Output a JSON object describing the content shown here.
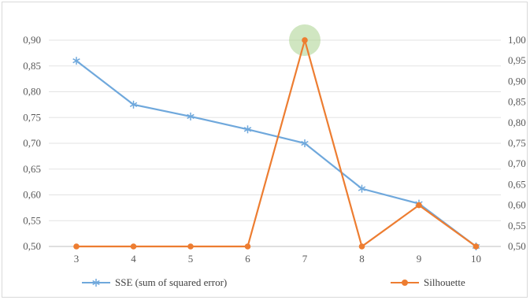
{
  "chart_data": {
    "type": "line",
    "categories": [
      "3",
      "4",
      "5",
      "6",
      "7",
      "8",
      "9",
      "10"
    ],
    "series": [
      {
        "name": "SSE (sum of squared error)",
        "axis": "left",
        "marker": "asterisk",
        "color": "#6fa8dc",
        "values": [
          0.86,
          0.775,
          0.752,
          0.727,
          0.7,
          0.612,
          0.583,
          0.5
        ]
      },
      {
        "name": "Silhouette",
        "axis": "right",
        "marker": "circle",
        "color": "#ed7d31",
        "values": [
          0.5,
          0.5,
          0.5,
          0.5,
          1.0,
          0.5,
          0.6,
          0.5
        ]
      }
    ],
    "y_left": {
      "ylim": [
        0.5,
        0.9
      ],
      "ticks": [
        "0,50",
        "0,55",
        "0,60",
        "0,65",
        "0,70",
        "0,75",
        "0,80",
        "0,85",
        "0,90"
      ]
    },
    "y_right": {
      "ylim": [
        0.5,
        1.0
      ],
      "ticks": [
        "0,50",
        "0,55",
        "0,60",
        "0,65",
        "0,70",
        "0,75",
        "0,80",
        "0,85",
        "0,90",
        "0,95",
        "1,00"
      ]
    },
    "highlight": {
      "category": "7",
      "series": "Silhouette",
      "color": "#a9d18e"
    },
    "grid": true,
    "legend_position": "bottom"
  }
}
